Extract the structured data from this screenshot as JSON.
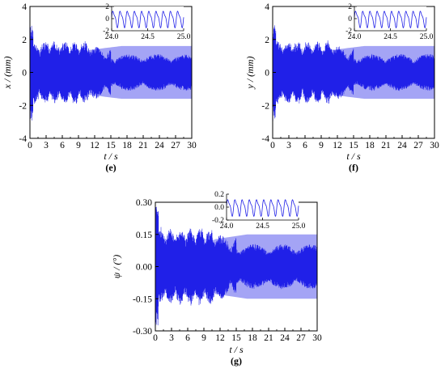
{
  "figure": {
    "colors": {
      "signal": "#2020e8",
      "envelope": "#8585f2",
      "axis": "#000000"
    }
  },
  "chart_data": [
    {
      "type": "line",
      "panel_label": "(e)",
      "xlabel": "t / s",
      "ylabel": "x / (mm)",
      "xlim": [
        0,
        30
      ],
      "ylim": [
        -4,
        4
      ],
      "xticks": [
        0,
        3,
        6,
        9,
        12,
        15,
        18,
        21,
        24,
        27,
        30
      ],
      "yticks": [
        -4,
        -2,
        0,
        2,
        4
      ],
      "steady_amplitude": 1.6,
      "inset": {
        "xlim": [
          24.0,
          25.0
        ],
        "ylim": [
          -2,
          2
        ],
        "xticks": [
          "24.0",
          "24.5",
          "25.0"
        ],
        "yticks": [
          "-2",
          "0",
          "2"
        ]
      }
    },
    {
      "type": "line",
      "panel_label": "(f)",
      "xlabel": "t / s",
      "ylabel": "y / (mm)",
      "xlim": [
        0,
        30
      ],
      "ylim": [
        -4,
        4
      ],
      "xticks": [
        0,
        3,
        6,
        9,
        12,
        15,
        18,
        21,
        24,
        27,
        30
      ],
      "yticks": [
        -4,
        -2,
        0,
        2,
        4
      ],
      "steady_amplitude": 1.6,
      "inset": {
        "xlim": [
          24.0,
          25.0
        ],
        "ylim": [
          -2,
          2
        ],
        "xticks": [
          "24.0",
          "24.5",
          "25.0"
        ],
        "yticks": [
          "-2",
          "0",
          "2"
        ]
      }
    },
    {
      "type": "line",
      "panel_label": "(g)",
      "xlabel": "t / s",
      "ylabel": "ψ / (°)",
      "xlim": [
        0,
        30
      ],
      "ylim": [
        -0.3,
        0.3
      ],
      "xticks": [
        0,
        3,
        6,
        9,
        12,
        15,
        18,
        21,
        24,
        27,
        30
      ],
      "yticks": [
        -0.3,
        -0.15,
        0.0,
        0.15,
        0.3
      ],
      "ytick_labels": [
        "-0.30",
        "-0.15",
        "0.00",
        "0.15",
        "0.30"
      ],
      "steady_amplitude": 0.15,
      "inset": {
        "xlim": [
          24.0,
          25.0
        ],
        "ylim": [
          -0.2,
          0.2
        ],
        "xticks": [
          "24.0",
          "24.5",
          "25.0"
        ],
        "yticks": [
          "-0.2",
          "0.0",
          "0.2"
        ]
      }
    }
  ]
}
